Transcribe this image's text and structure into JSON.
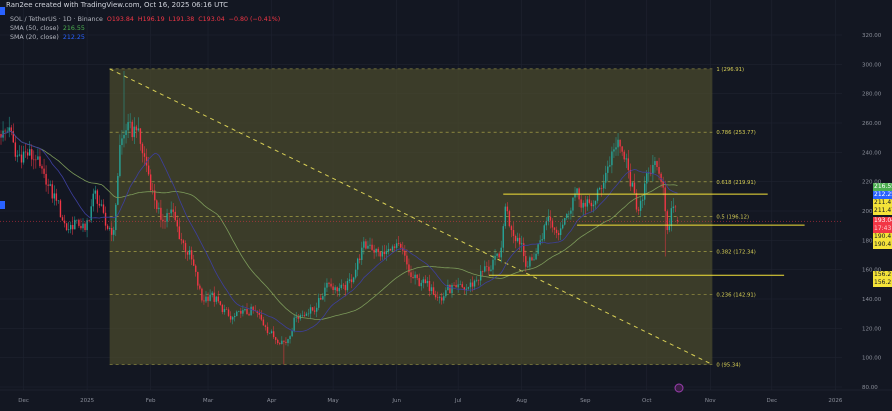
{
  "header": {
    "attribution": "Ran2ee created with TradingView.com, Oct 16, 2025 06:16 UTC"
  },
  "legend": {
    "symbol": "SOL / TetherUS · 1D · Binance",
    "open": "O193.84",
    "high": "H196.19",
    "low": "L191.38",
    "close": "C193.04",
    "change": "−0.80 (−0.41%)",
    "sma50_label": "SMA (50, close)",
    "sma50_value": "216.55",
    "sma20_label": "SMA (20, close)",
    "sma20_value": "212.25"
  },
  "price_tags": [
    {
      "text": "216.55",
      "price": 216.55,
      "bg": "#4caf50",
      "fg": "#ffffff"
    },
    {
      "text": "212.25",
      "price": 212.25,
      "bg": "#2962ff",
      "fg": "#ffffff"
    },
    {
      "text": "211.47",
      "price": 211.47,
      "bg": "#f5e339",
      "fg": "#131722"
    },
    {
      "text": "211.47",
      "price": 211.47,
      "bg": "#f5e339",
      "fg": "#131722"
    },
    {
      "text": "193.04",
      "price": 193.04,
      "bg": "#f23645",
      "fg": "#ffffff"
    },
    {
      "text": "17:43",
      "price": 193.04,
      "bg": "#f23645",
      "fg": "#ffd0d4"
    },
    {
      "text": "190.4",
      "price": 190.4,
      "bg": "#f5e339",
      "fg": "#131722"
    },
    {
      "text": "190.4",
      "price": 190.4,
      "bg": "#f5e339",
      "fg": "#131722"
    },
    {
      "text": "156.2",
      "price": 156.2,
      "bg": "#f5e339",
      "fg": "#131722"
    },
    {
      "text": "156.2",
      "price": 156.2,
      "bg": "#f5e339",
      "fg": "#131722"
    }
  ],
  "colors": {
    "background": "#131722",
    "up": "#26a69a",
    "down": "#f23645",
    "sma50": "#7c9a5a",
    "sma20": "#3d3f9e",
    "fib": "#d8cf55",
    "fib_fill": "#4a4a2c",
    "support": "#f5e339"
  },
  "chart_data": {
    "type": "candlestick",
    "title": "SOL / TetherUS · 1D · Binance",
    "start_date": "2024-11-20",
    "end_date": "2025-10-16",
    "ylim": [
      80,
      330
    ],
    "yticks": [
      80,
      100,
      120,
      140,
      160,
      180,
      200,
      220,
      240,
      260,
      280,
      300,
      320
    ],
    "ytick_labels": [
      "80.00",
      "100.00",
      "120.00",
      "140.00",
      "160.00",
      "180.00",
      "200.00",
      "220.00",
      "240.00",
      "260.00",
      "280.00",
      "300.00",
      "320.00"
    ],
    "xticks": [
      {
        "label": "Dec",
        "date": "2024-12-01"
      },
      {
        "label": "2025",
        "date": "2025-01-01"
      },
      {
        "label": "Feb",
        "date": "2025-02-01"
      },
      {
        "label": "Mar",
        "date": "2025-03-01"
      },
      {
        "label": "Apr",
        "date": "2025-04-01"
      },
      {
        "label": "May",
        "date": "2025-05-01"
      },
      {
        "label": "Jun",
        "date": "2025-06-01"
      },
      {
        "label": "Jul",
        "date": "2025-07-01"
      },
      {
        "label": "Aug",
        "date": "2025-08-01"
      },
      {
        "label": "Sep",
        "date": "2025-09-01"
      },
      {
        "label": "Oct",
        "date": "2025-10-01"
      },
      {
        "label": "Nov",
        "date": "2025-11-01"
      },
      {
        "label": "Dec",
        "date": "2025-12-01"
      },
      {
        "label": "2026",
        "date": "2026-01-01"
      }
    ],
    "approx_closes": [
      [
        "2024-11-20",
        250
      ],
      [
        "2024-11-24",
        257
      ],
      [
        "2024-11-27",
        237
      ],
      [
        "2024-12-02",
        240
      ],
      [
        "2024-12-07",
        235
      ],
      [
        "2024-12-12",
        218
      ],
      [
        "2024-12-17",
        207
      ],
      [
        "2024-12-22",
        187
      ],
      [
        "2024-12-27",
        194
      ],
      [
        "2024-12-31",
        187
      ],
      [
        "2025-01-05",
        214
      ],
      [
        "2025-01-10",
        190
      ],
      [
        "2025-01-14",
        187
      ],
      [
        "2025-01-17",
        245
      ],
      [
        "2025-01-20",
        255
      ],
      [
        "2025-01-25",
        255
      ],
      [
        "2025-01-30",
        231
      ],
      [
        "2025-02-02",
        214
      ],
      [
        "2025-02-06",
        194
      ],
      [
        "2025-02-11",
        201
      ],
      [
        "2025-02-16",
        180
      ],
      [
        "2025-02-21",
        167
      ],
      [
        "2025-02-26",
        139
      ],
      [
        "2025-03-02",
        143
      ],
      [
        "2025-03-07",
        136
      ],
      [
        "2025-03-12",
        126
      ],
      [
        "2025-03-17",
        130
      ],
      [
        "2025-03-24",
        132
      ],
      [
        "2025-03-29",
        121
      ],
      [
        "2025-04-02",
        114
      ],
      [
        "2025-04-08",
        110
      ],
      [
        "2025-04-13",
        128
      ],
      [
        "2025-04-18",
        130
      ],
      [
        "2025-04-23",
        134
      ],
      [
        "2025-04-28",
        151
      ],
      [
        "2025-05-02",
        148
      ],
      [
        "2025-05-07",
        146
      ],
      [
        "2025-05-12",
        160
      ],
      [
        "2025-05-15",
        175
      ],
      [
        "2025-05-19",
        177
      ],
      [
        "2025-05-24",
        169
      ],
      [
        "2025-05-29",
        173
      ],
      [
        "2025-06-03",
        175
      ],
      [
        "2025-06-08",
        155
      ],
      [
        "2025-06-13",
        151
      ],
      [
        "2025-06-18",
        148
      ],
      [
        "2025-06-23",
        139
      ],
      [
        "2025-06-25",
        146
      ],
      [
        "2025-06-30",
        148
      ],
      [
        "2025-07-05",
        147
      ],
      [
        "2025-07-10",
        153
      ],
      [
        "2025-07-15",
        162
      ],
      [
        "2025-07-17",
        160
      ],
      [
        "2025-07-22",
        175
      ],
      [
        "2025-07-24",
        203
      ],
      [
        "2025-07-27",
        187
      ],
      [
        "2025-08-01",
        178
      ],
      [
        "2025-08-03",
        162
      ],
      [
        "2025-08-07",
        167
      ],
      [
        "2025-08-10",
        180
      ],
      [
        "2025-08-14",
        196
      ],
      [
        "2025-08-18",
        185
      ],
      [
        "2025-08-23",
        198
      ],
      [
        "2025-08-27",
        212
      ],
      [
        "2025-09-01",
        203
      ],
      [
        "2025-09-06",
        207
      ],
      [
        "2025-09-11",
        226
      ],
      [
        "2025-09-15",
        242
      ],
      [
        "2025-09-18",
        244
      ],
      [
        "2025-09-22",
        228
      ],
      [
        "2025-09-26",
        201
      ],
      [
        "2025-09-28",
        207
      ],
      [
        "2025-10-02",
        226
      ],
      [
        "2025-10-06",
        230
      ],
      [
        "2025-10-09",
        216
      ],
      [
        "2025-10-11",
        187
      ],
      [
        "2025-10-14",
        203
      ],
      [
        "2025-10-16",
        193.04
      ]
    ],
    "extremes": [
      {
        "date": "2025-01-19",
        "high": 295.5
      },
      {
        "date": "2025-04-07",
        "low": 95.34
      },
      {
        "date": "2025-10-10",
        "low": 169
      }
    ],
    "last": {
      "open": 193.84,
      "high": 196.19,
      "low": 191.38,
      "close": 193.04
    },
    "indicators": [
      {
        "name": "SMA (50, close)",
        "period": 50,
        "value": 216.55
      },
      {
        "name": "SMA (20, close)",
        "period": 20,
        "value": 212.25
      }
    ],
    "fibonacci": {
      "start_date": "2025-01-12",
      "end_date": "2025-11-02",
      "levels": [
        {
          "ratio": "1",
          "price": 296.91,
          "label": "1 (296.91)"
        },
        {
          "ratio": "0.786",
          "price": 253.77,
          "label": "0.786 (253.77)"
        },
        {
          "ratio": "0.618",
          "price": 219.91,
          "label": "0.618 (219.91)"
        },
        {
          "ratio": "0.5",
          "price": 196.12,
          "label": "0.5 (196.12)"
        },
        {
          "ratio": "0.382",
          "price": 172.34,
          "label": "0.382 (172.34)"
        },
        {
          "ratio": "0.236",
          "price": 142.91,
          "label": "0.236 (142.91)"
        },
        {
          "ratio": "0",
          "price": 95.34,
          "label": "0 (95.34)"
        }
      ]
    },
    "horizontal_lines": [
      {
        "price": 211.47,
        "from": "2025-07-23",
        "to": "2025-11-29"
      },
      {
        "price": 190.4,
        "from": "2025-08-28",
        "to": "2025-12-17"
      },
      {
        "price": 156.2,
        "from": "2025-07-16",
        "to": "2025-12-07"
      }
    ]
  }
}
